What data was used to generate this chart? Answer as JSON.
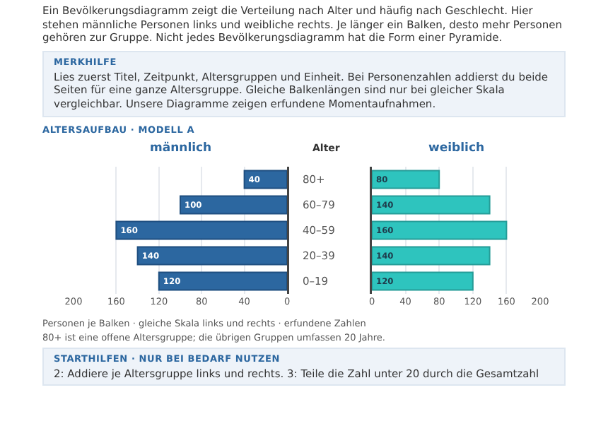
{
  "chart_data": [
    {
      "type": "bar",
      "orientation": "horizontal",
      "title": "männlich",
      "annotations": [
        "Ein Bevölkerungsdiagramm zeigt die Verteilung nach Alter und häufig nach Geschlecht. Hier stehen männliche Personen links und weibliche rechts. Je länger ein Balken, desto mehr Personen gehören zur Gruppe. Nicht jedes Bevölkerungsdiagramm hat die Form einer Pyramide.",
        "MERKHILFE",
        "Lies zuerst Titel, Zeitpunkt, Altersgruppen und Einheit. Bei Personenzahlen addierst du beide Seiten für eine ganze Altersgruppe. Gleiche Balkenlängen sind nur bei gleicher Skala vergleichbar. Unsere Diagramme zeigen erfundene Momentaufnahmen.",
        "ALTERSAUFBAU · MODELL A"
      ],
      "categories": [
        "80+",
        "60–79",
        "40–59",
        "20–39",
        "0–19"
      ],
      "values": [
        40,
        100,
        160,
        140,
        120
      ],
      "color": "#2c67a0",
      "xlim": [
        200,
        0
      ],
      "xticks": [
        200,
        160,
        120,
        80,
        40,
        0
      ],
      "grid": "x",
      "data_labels": true,
      "ylabel": "Alter"
    },
    {
      "type": "bar",
      "orientation": "horizontal",
      "title": "weiblich",
      "tick_labels": "x",
      "annotations": [
        "Personen je Balken · gleiche Skala links und rechts · erfundene Zahlen",
        "80+ ist eine offene Altersgruppe; die übrigen Gruppen umfassen 20 Jahre.",
        "STARTHILFEN · NUR BEI BEDARF NUTZEN",
        "2: Addiere je Altersgruppe links und rechts. 3: Teile die Zahl unter 20 durch die Gesamtzahl"
      ],
      "categories": [
        null,
        null,
        null,
        null,
        null
      ],
      "values": [
        80,
        140,
        160,
        140,
        120
      ],
      "color": "#2ec4be",
      "xlim": [
        0,
        200
      ],
      "xticks": [
        0,
        40,
        80,
        120,
        160,
        200
      ],
      "grid": "x",
      "data_labels": true
    }
  ]
}
